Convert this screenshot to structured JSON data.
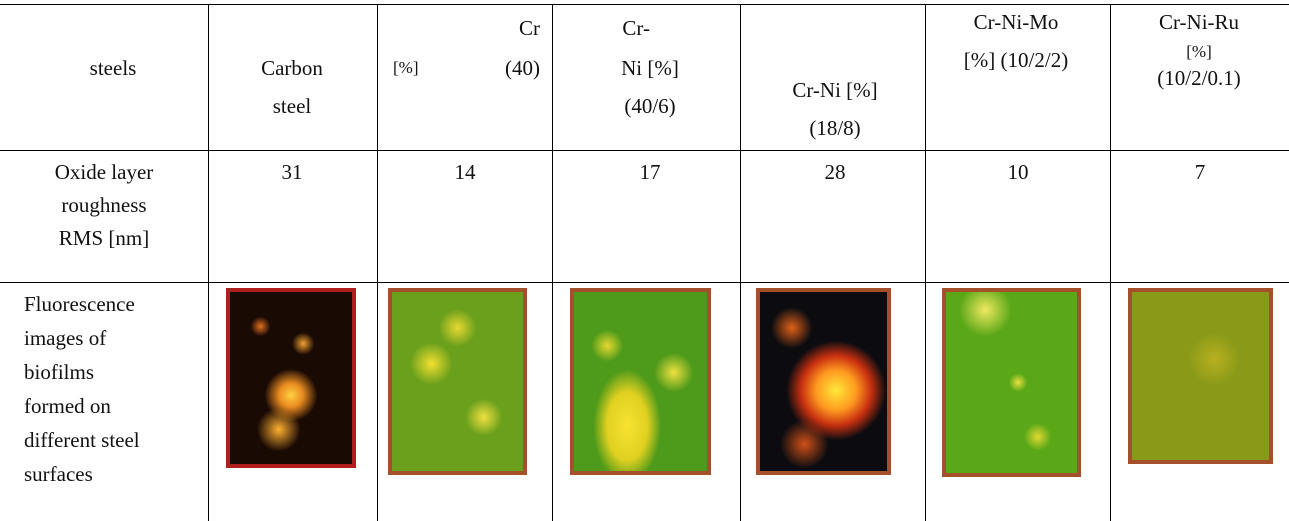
{
  "header": {
    "cells": [
      [
        "steels"
      ],
      [
        "Carbon",
        "steel"
      ],
      [
        "[%]",
        "Cr",
        "(40)"
      ],
      [
        "Cr-",
        "Ni [%]",
        "(40/6)"
      ],
      [
        "Cr-Ni [%]",
        "(18/8)"
      ],
      [
        "Cr-Ni-Mo",
        "[%] (10/2/2)"
      ],
      [
        "Cr-Ni-Ru",
        "[%]",
        "(10/2/0.1)"
      ]
    ]
  },
  "rows": [
    {
      "label": [
        "Oxide layer",
        "roughness",
        "RMS [nm]"
      ],
      "values": [
        31,
        14,
        17,
        28,
        10,
        7
      ]
    },
    {
      "label": [
        "Fluorescence",
        "images of",
        "biofilms",
        "formed on",
        "different steel",
        "surfaces"
      ]
    }
  ]
}
